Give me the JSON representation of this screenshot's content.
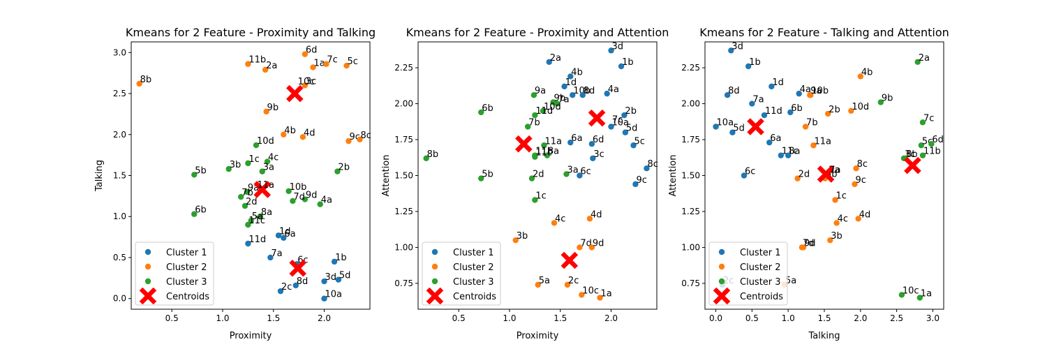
{
  "colors": {
    "cluster1": "#1f77b4",
    "cluster2": "#ff7f0e",
    "cluster3": "#2ca02c",
    "centroid": "#ff0000"
  },
  "legend": {
    "placement": "lower left",
    "entries": [
      "Cluster 1",
      "Cluster 2",
      "Cluster 3",
      "Centroids"
    ]
  },
  "chart_data": [
    {
      "type": "scatter",
      "title": "Kmeans for 2 Feature - Proximity and Talking",
      "xlabel": "Proximity",
      "ylabel": "Talking",
      "xlim": [
        0.1,
        2.45
      ],
      "ylim": [
        -0.13,
        3.13
      ],
      "xticks": [
        "0.5",
        "1.0",
        "1.5",
        "2.0"
      ],
      "yticks": [
        "0.0",
        "0.5",
        "1.0",
        "1.5",
        "2.0",
        "2.5",
        "3.0"
      ],
      "grid": false,
      "legend_placement": "lower left",
      "series": [
        {
          "name": "Cluster 1",
          "points": [
            {
              "label": "1b",
              "x": 2.1,
              "y": 0.45
            },
            {
              "label": "3d",
              "x": 2.0,
              "y": 0.21
            },
            {
              "label": "5d",
              "x": 2.14,
              "y": 0.23
            },
            {
              "label": "10a",
              "x": 2.0,
              "y": 0.0
            },
            {
              "label": "8d",
              "x": 1.72,
              "y": 0.16
            },
            {
              "label": "2c",
              "x": 1.57,
              "y": 0.09
            },
            {
              "label": "7a",
              "x": 1.47,
              "y": 0.5
            },
            {
              "label": "11d",
              "x": 1.25,
              "y": 0.67
            },
            {
              "label": "1d",
              "x": 1.55,
              "y": 0.77
            },
            {
              "label": "6a",
              "x": 1.6,
              "y": 0.74
            },
            {
              "label": "6c",
              "x": 1.73,
              "y": 0.42
            }
          ]
        },
        {
          "name": "Cluster 2",
          "points": [
            {
              "label": "8b",
              "x": 0.18,
              "y": 2.62
            },
            {
              "label": "11b",
              "x": 1.25,
              "y": 2.86
            },
            {
              "label": "2a",
              "x": 1.42,
              "y": 2.79
            },
            {
              "label": "6d",
              "x": 1.81,
              "y": 2.98
            },
            {
              "label": "1a",
              "x": 1.89,
              "y": 2.82
            },
            {
              "label": "7c",
              "x": 2.02,
              "y": 2.86
            },
            {
              "label": "5c",
              "x": 2.22,
              "y": 2.84
            },
            {
              "label": "3c",
              "x": 1.81,
              "y": 2.6
            },
            {
              "label": "9b",
              "x": 1.43,
              "y": 2.28
            },
            {
              "label": "4b",
              "x": 1.6,
              "y": 2.0
            },
            {
              "label": "4d",
              "x": 1.79,
              "y": 1.97
            },
            {
              "label": "9c",
              "x": 2.24,
              "y": 1.92
            },
            {
              "label": "8c",
              "x": 2.35,
              "y": 1.94
            }
          ]
        },
        {
          "name": "Cluster 3",
          "points": [
            {
              "label": "10d",
              "x": 1.33,
              "y": 1.87
            },
            {
              "label": "1c",
              "x": 1.25,
              "y": 1.65
            },
            {
              "label": "4c",
              "x": 1.44,
              "y": 1.67
            },
            {
              "label": "3b",
              "x": 1.06,
              "y": 1.58
            },
            {
              "label": "3a",
              "x": 1.39,
              "y": 1.55
            },
            {
              "label": "5b",
              "x": 0.72,
              "y": 1.51
            },
            {
              "label": "2b",
              "x": 2.13,
              "y": 1.55
            },
            {
              "label": "9a",
              "x": 1.24,
              "y": 1.3
            },
            {
              "label": "7b",
              "x": 1.18,
              "y": 1.24
            },
            {
              "label": "10b",
              "x": 1.65,
              "y": 1.31
            },
            {
              "label": "9d",
              "x": 1.81,
              "y": 1.21
            },
            {
              "label": "7d",
              "x": 1.69,
              "y": 1.19
            },
            {
              "label": "4a",
              "x": 1.96,
              "y": 1.15
            },
            {
              "label": "2d",
              "x": 1.22,
              "y": 1.13
            },
            {
              "label": "6b",
              "x": 0.72,
              "y": 1.03
            },
            {
              "label": "8a",
              "x": 1.37,
              "y": 1.0
            },
            {
              "label": "5a",
              "x": 1.28,
              "y": 0.95
            },
            {
              "label": "11c",
              "x": 1.25,
              "y": 0.9
            }
          ]
        }
      ],
      "centroids": [
        {
          "x": 1.71,
          "y": 2.5
        },
        {
          "x": 1.74,
          "y": 0.37
        },
        {
          "x": 1.39,
          "y": 1.33
        }
      ],
      "annotations": [
        {
          "text": "10c",
          "x": 1.74,
          "y": 2.61
        },
        {
          "text": "11a",
          "x": 1.34,
          "y": 1.35
        }
      ]
    },
    {
      "type": "scatter",
      "title": "Kmeans for 2 Feature - Proximity and Attention",
      "xlabel": "Proximity",
      "ylabel": "Attention",
      "xlim": [
        0.1,
        2.45
      ],
      "ylim": [
        0.57,
        2.43
      ],
      "xticks": [
        "0.5",
        "1.0",
        "1.5",
        "2.0"
      ],
      "yticks": [
        "0.75",
        "1.00",
        "1.25",
        "1.50",
        "1.75",
        "2.00",
        "2.25"
      ],
      "grid": false,
      "legend_placement": "lower left",
      "series": [
        {
          "name": "Cluster 1",
          "points": [
            {
              "label": "3d",
              "x": 2.0,
              "y": 2.37
            },
            {
              "label": "2a",
              "x": 1.39,
              "y": 2.29
            },
            {
              "label": "1b",
              "x": 2.1,
              "y": 2.26
            },
            {
              "label": "4b",
              "x": 1.6,
              "y": 2.19
            },
            {
              "label": "1d",
              "x": 1.54,
              "y": 2.12
            },
            {
              "label": "4a",
              "x": 1.96,
              "y": 2.07
            },
            {
              "label": "10b",
              "x": 1.62,
              "y": 2.06
            },
            {
              "label": "8d",
              "x": 1.72,
              "y": 2.06
            },
            {
              "label": "2b",
              "x": 2.13,
              "y": 1.92
            },
            {
              "label": "10a",
              "x": 2.0,
              "y": 1.84
            },
            {
              "label": "5d",
              "x": 2.14,
              "y": 1.8
            },
            {
              "label": "5c",
              "x": 2.22,
              "y": 1.71
            },
            {
              "label": "6a",
              "x": 1.6,
              "y": 1.73
            },
            {
              "label": "6d",
              "x": 1.81,
              "y": 1.72
            },
            {
              "label": "3c",
              "x": 1.82,
              "y": 1.62
            },
            {
              "label": "8c",
              "x": 2.35,
              "y": 1.55
            },
            {
              "label": "6c",
              "x": 1.69,
              "y": 1.5
            },
            {
              "label": "9c",
              "x": 2.24,
              "y": 1.44
            }
          ]
        },
        {
          "name": "Cluster 2",
          "points": [
            {
              "label": "4d",
              "x": 1.79,
              "y": 1.2
            },
            {
              "label": "4c",
              "x": 1.44,
              "y": 1.17
            },
            {
              "label": "3b",
              "x": 1.06,
              "y": 1.05
            },
            {
              "label": "7d",
              "x": 1.69,
              "y": 1.0
            },
            {
              "label": "9d",
              "x": 1.81,
              "y": 1.0
            },
            {
              "label": "5a",
              "x": 1.28,
              "y": 0.74
            },
            {
              "label": "2c",
              "x": 1.57,
              "y": 0.74
            },
            {
              "label": "10c",
              "x": 1.71,
              "y": 0.67
            },
            {
              "label": "1a",
              "x": 1.89,
              "y": 0.65
            }
          ]
        },
        {
          "name": "Cluster 3",
          "points": [
            {
              "label": "9a",
              "x": 1.24,
              "y": 2.06
            },
            {
              "label": "9b",
              "x": 1.43,
              "y": 2.01
            },
            {
              "label": "7a",
              "x": 1.47,
              "y": 2.0
            },
            {
              "label": "6b",
              "x": 0.72,
              "y": 1.94
            },
            {
              "label": "10d",
              "x": 1.33,
              "y": 1.95
            },
            {
              "label": "11d",
              "x": 1.25,
              "y": 1.92
            },
            {
              "label": "7b",
              "x": 1.18,
              "y": 1.84
            },
            {
              "label": "11a",
              "x": 1.34,
              "y": 1.71
            },
            {
              "label": "11b",
              "x": 1.25,
              "y": 1.64
            },
            {
              "label": "8a",
              "x": 1.37,
              "y": 1.64
            },
            {
              "label": "11c",
              "x": 1.25,
              "y": 1.63
            },
            {
              "label": "8b",
              "x": 0.18,
              "y": 1.62
            },
            {
              "label": "3a",
              "x": 1.56,
              "y": 1.51
            },
            {
              "label": "2d",
              "x": 1.22,
              "y": 1.48
            },
            {
              "label": "5b",
              "x": 0.72,
              "y": 1.48
            },
            {
              "label": "1c",
              "x": 1.25,
              "y": 1.33
            }
          ]
        }
      ],
      "centroids": [
        {
          "x": 1.86,
          "y": 1.9
        },
        {
          "x": 1.59,
          "y": 0.91
        },
        {
          "x": 1.14,
          "y": 1.72
        }
      ],
      "annotations": [
        {
          "text": "7c",
          "x": 2.01,
          "y": 1.87
        }
      ]
    },
    {
      "type": "scatter",
      "title": "Kmeans for 2 Feature - Talking and Attention",
      "xlabel": "Talking",
      "ylabel": "Attention",
      "xlim": [
        -0.15,
        3.15
      ],
      "ylim": [
        0.57,
        2.43
      ],
      "xticks": [
        "0.0",
        "0.5",
        "1.0",
        "1.5",
        "2.0",
        "2.5",
        "3.0"
      ],
      "yticks": [
        "0.75",
        "1.00",
        "1.25",
        "1.50",
        "1.75",
        "2.00",
        "2.25"
      ],
      "grid": false,
      "legend_placement": "lower left",
      "series": [
        {
          "name": "Cluster 1",
          "points": [
            {
              "label": "3d",
              "x": 0.21,
              "y": 2.37
            },
            {
              "label": "1b",
              "x": 0.45,
              "y": 2.26
            },
            {
              "label": "1d",
              "x": 0.77,
              "y": 2.12
            },
            {
              "label": "4a",
              "x": 1.15,
              "y": 2.07
            },
            {
              "label": "8d",
              "x": 0.16,
              "y": 2.06
            },
            {
              "label": "7a",
              "x": 0.5,
              "y": 2.0
            },
            {
              "label": "6b",
              "x": 1.03,
              "y": 1.94
            },
            {
              "label": "11d",
              "x": 0.67,
              "y": 1.92
            },
            {
              "label": "10a",
              "x": 0.0,
              "y": 1.84
            },
            {
              "label": "5d",
              "x": 0.23,
              "y": 1.8
            },
            {
              "label": "6a",
              "x": 0.74,
              "y": 1.73
            },
            {
              "label": "11c",
              "x": 0.9,
              "y": 1.64
            },
            {
              "label": "8a",
              "x": 1.0,
              "y": 1.64
            },
            {
              "label": "6c",
              "x": 0.39,
              "y": 1.5
            },
            {
              "label": "2c",
              "x": 0.09,
              "y": 0.74
            }
          ]
        },
        {
          "name": "Cluster 2",
          "points": [
            {
              "label": "4b",
              "x": 2.0,
              "y": 2.19
            },
            {
              "label": "10b",
              "x": 1.31,
              "y": 2.06
            },
            {
              "label": "9a",
              "x": 1.3,
              "y": 2.06
            },
            {
              "label": "2b",
              "x": 1.55,
              "y": 1.93
            },
            {
              "label": "10d",
              "x": 1.87,
              "y": 1.95
            },
            {
              "label": "7b",
              "x": 1.24,
              "y": 1.84
            },
            {
              "label": "11a",
              "x": 1.35,
              "y": 1.71
            },
            {
              "label": "8c",
              "x": 1.94,
              "y": 1.55
            },
            {
              "label": "3a",
              "x": 1.55,
              "y": 1.51
            },
            {
              "label": "5b",
              "x": 1.51,
              "y": 1.48
            },
            {
              "label": "2d",
              "x": 1.13,
              "y": 1.48
            },
            {
              "label": "9c",
              "x": 1.92,
              "y": 1.44
            },
            {
              "label": "1c",
              "x": 1.65,
              "y": 1.33
            },
            {
              "label": "4d",
              "x": 1.97,
              "y": 1.2
            },
            {
              "label": "4c",
              "x": 1.67,
              "y": 1.17
            },
            {
              "label": "3b",
              "x": 1.58,
              "y": 1.05
            },
            {
              "label": "7d",
              "x": 1.19,
              "y": 1.0
            },
            {
              "label": "9d",
              "x": 1.21,
              "y": 1.0
            },
            {
              "label": "5a",
              "x": 0.95,
              "y": 0.74
            }
          ]
        },
        {
          "name": "Cluster 3",
          "points": [
            {
              "label": "2a",
              "x": 2.79,
              "y": 2.29
            },
            {
              "label": "9b",
              "x": 2.28,
              "y": 2.01
            },
            {
              "label": "7c",
              "x": 2.86,
              "y": 1.87
            },
            {
              "label": "5c",
              "x": 2.84,
              "y": 1.71
            },
            {
              "label": "6d",
              "x": 2.98,
              "y": 1.72
            },
            {
              "label": "11b",
              "x": 2.86,
              "y": 1.64
            },
            {
              "label": "3c",
              "x": 2.6,
              "y": 1.62
            },
            {
              "label": "8b",
              "x": 2.62,
              "y": 1.62
            },
            {
              "label": "10c",
              "x": 2.57,
              "y": 0.67
            },
            {
              "label": "1a",
              "x": 2.82,
              "y": 0.65
            }
          ]
        }
      ],
      "centroids": [
        {
          "x": 0.55,
          "y": 1.84
        },
        {
          "x": 1.52,
          "y": 1.51
        },
        {
          "x": 2.72,
          "y": 1.57
        }
      ],
      "annotations": [
        {
          "text": "7a",
          "x": 1.57,
          "y": 1.52
        }
      ]
    }
  ]
}
